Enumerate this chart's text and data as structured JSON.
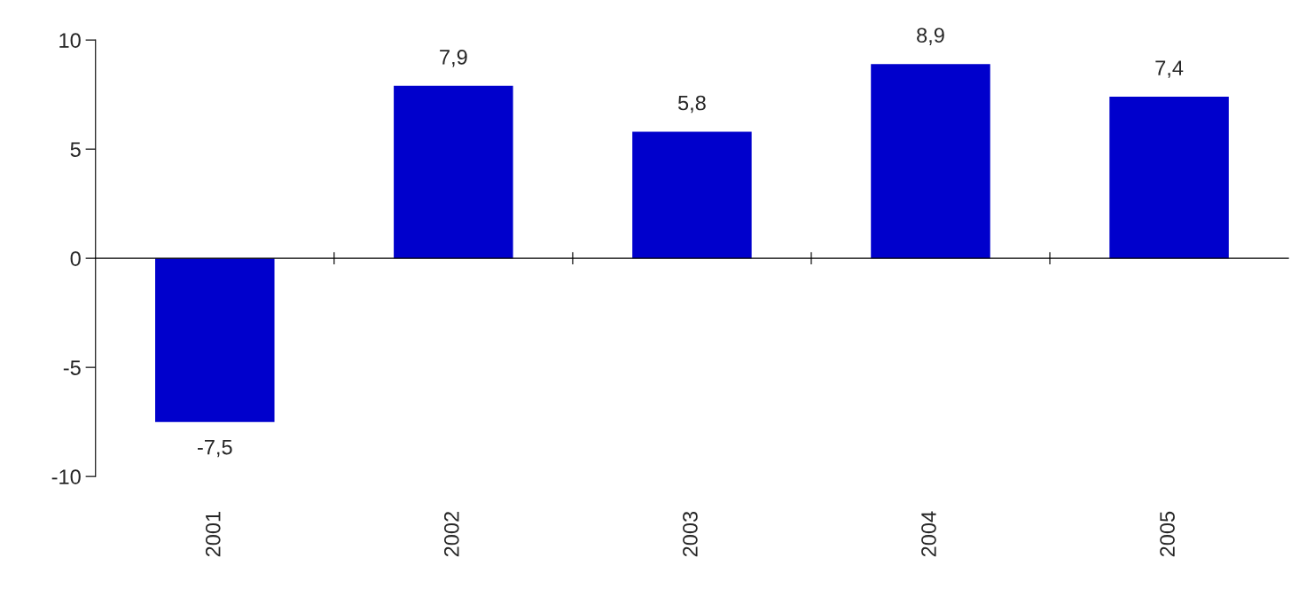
{
  "chart_data": {
    "type": "bar",
    "categories": [
      "2001",
      "2002",
      "2003",
      "2004",
      "2005"
    ],
    "values": [
      -7.5,
      7.9,
      5.8,
      8.9,
      7.4
    ],
    "value_labels": [
      "-7,5",
      "7,9",
      "5,8",
      "8,9",
      "7,4"
    ],
    "color": "#0000cc",
    "ylim": [
      -10,
      10
    ],
    "yticks": [
      -10,
      -5,
      0,
      5,
      10
    ]
  }
}
